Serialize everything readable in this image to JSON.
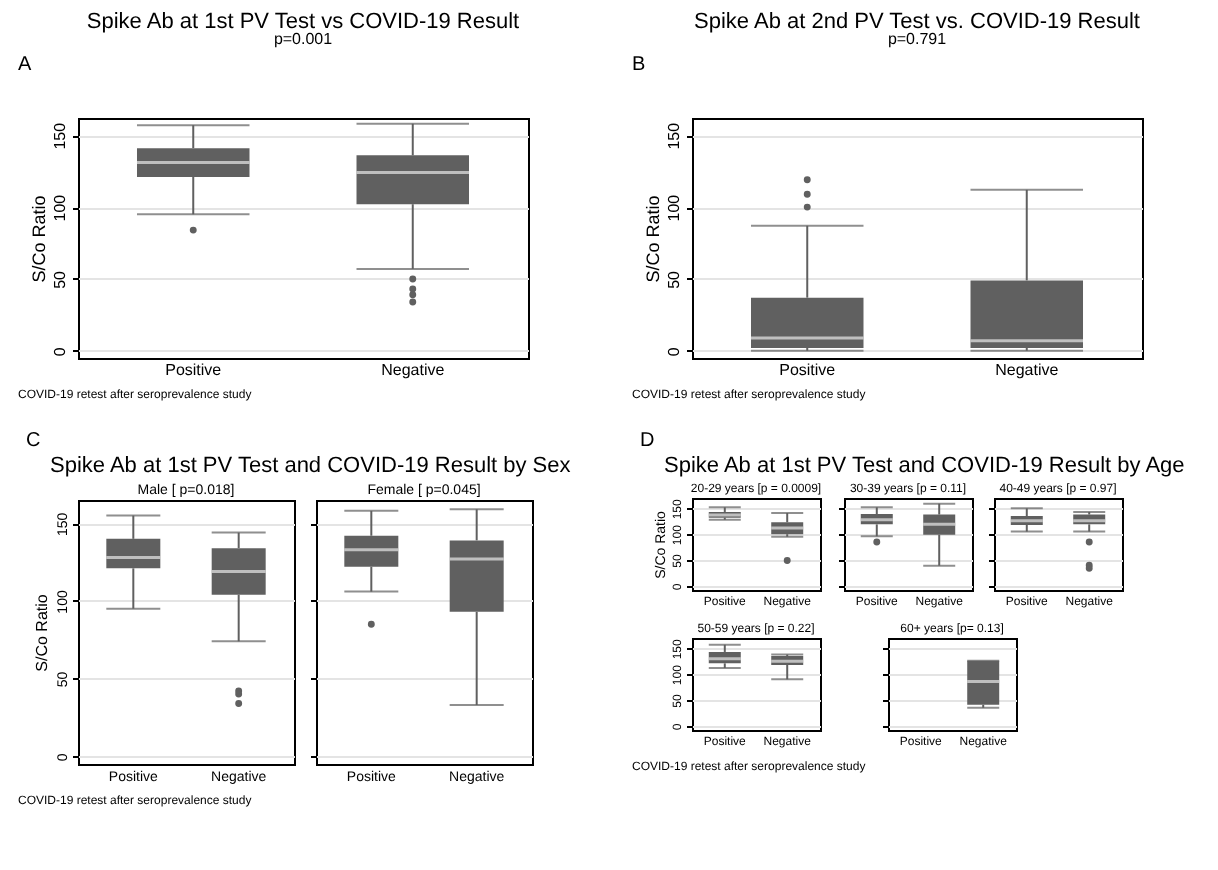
{
  "chart_data": [
    {
      "type": "box",
      "title": "Spike Ab at 1st PV Test vs COVID-19 Result",
      "subtitle": "p=0.001",
      "ylabel": "S/Co Ratio",
      "categories": [
        "Positive",
        "Negative"
      ],
      "ylim": [
        -5,
        162
      ],
      "yticks": [
        0,
        50,
        100,
        150
      ],
      "grid": "y",
      "color": "#606060",
      "annotations": [
        "A",
        "COVID-19 retest after seroprevalence study"
      ],
      "boxes": [
        {
          "low": 95,
          "q1": 121,
          "median": 131,
          "q3": 141,
          "high": 157,
          "outliers": [
            84
          ]
        },
        {
          "low": 57,
          "q1": 102,
          "median": 124,
          "q3": 136,
          "high": 158,
          "outliers": [
            50,
            43,
            39,
            34
          ]
        }
      ]
    },
    {
      "type": "box",
      "title": "Spike Ab at 2nd PV Test vs. COVID-19 Result",
      "subtitle": "p=0.791",
      "ylabel": "S/Co Ratio",
      "categories": [
        "Positive",
        "Negative"
      ],
      "ylim": [
        -5,
        162
      ],
      "yticks": [
        0,
        50,
        100,
        150
      ],
      "grid": "y",
      "color": "#606060",
      "annotations": [
        "B",
        "COVID-19 retest after seroprevalence study"
      ],
      "boxes": [
        {
          "low": 0,
          "q1": 2,
          "median": 9,
          "q3": 37,
          "high": 87,
          "outliers": [
            100,
            109,
            119
          ]
        },
        {
          "low": 0,
          "q1": 2,
          "median": 7,
          "q3": 49,
          "high": 112
        }
      ]
    },
    {
      "type": "other",
      "title": "Spike Ab at 1st PV Test and COVID-19 Result by Sex",
      "annotations": [
        "C"
      ]
    },
    {
      "type": "box",
      "title": "Male [ p=0.018]",
      "ylabel": "S/Co Ratio",
      "categories": [
        "Positive",
        "Negative"
      ],
      "ylim": [
        -5,
        165
      ],
      "yticks": [
        0,
        50,
        100,
        150
      ],
      "grid": "y",
      "color": "#606060",
      "annotations": [
        "COVID-19 retest after seroprevalence study"
      ],
      "boxes": [
        {
          "low": 95,
          "q1": 121,
          "median": 128,
          "q3": 140,
          "high": 155
        },
        {
          "low": 74,
          "q1": 104,
          "median": 119,
          "q3": 134,
          "high": 144,
          "outliers": [
            42,
            40,
            34
          ]
        }
      ]
    },
    {
      "type": "box",
      "title": "Female [ p=0.045]",
      "categories": [
        "Positive",
        "Negative"
      ],
      "ylim": [
        -5,
        165
      ],
      "yticks": [
        0,
        50,
        100,
        150
      ],
      "tick_labels": "x",
      "grid": "y",
      "color": "#606060",
      "boxes": [
        {
          "low": 106,
          "q1": 122,
          "median": 133,
          "q3": 142,
          "high": 158,
          "outliers": [
            85
          ]
        },
        {
          "low": 33,
          "q1": 93,
          "median": 127,
          "q3": 139,
          "high": 159
        }
      ]
    },
    {
      "type": "other",
      "title": "Spike Ab at 1st PV Test and COVID-19 Result by Age",
      "annotations": [
        "D"
      ]
    },
    {
      "type": "box",
      "title": "20-29 years [p = 0.0009]",
      "ylabel": "S/Co Ratio",
      "categories": [
        "Positive",
        "Negative"
      ],
      "ylim": [
        -8,
        170
      ],
      "yticks": [
        0,
        50,
        100,
        150
      ],
      "grid": "y",
      "color": "#606060",
      "boxes": [
        {
          "low": 128,
          "q1": 132,
          "median": 137,
          "q3": 143,
          "high": 152
        },
        {
          "low": 95,
          "q1": 100,
          "median": 112,
          "q3": 123,
          "high": 141,
          "outliers": [
            49
          ]
        }
      ]
    },
    {
      "type": "box",
      "title": "30-39 years [p = 0.11]",
      "categories": [
        "Positive",
        "Negative"
      ],
      "ylim": [
        -8,
        170
      ],
      "yticks": [
        0,
        50,
        100,
        150
      ],
      "tick_labels": "x",
      "grid": "y",
      "color": "#606060",
      "boxes": [
        {
          "low": 96,
          "q1": 119,
          "median": 128,
          "q3": 139,
          "high": 152,
          "outliers": [
            85
          ]
        },
        {
          "low": 39,
          "q1": 99,
          "median": 119,
          "q3": 138,
          "high": 159
        }
      ]
    },
    {
      "type": "box",
      "title": "40-49 years [p = 0.97]",
      "categories": [
        "Positive",
        "Negative"
      ],
      "ylim": [
        -8,
        170
      ],
      "yticks": [
        0,
        50,
        100,
        150
      ],
      "tick_labels": "x",
      "grid": "y",
      "color": "#606060",
      "boxes": [
        {
          "low": 105,
          "q1": 118,
          "median": 126,
          "q3": 135,
          "high": 150
        },
        {
          "low": 105,
          "q1": 119,
          "median": 126,
          "q3": 138,
          "high": 143,
          "outliers": [
            85,
            40,
            34
          ]
        }
      ]
    },
    {
      "type": "box",
      "title": "50-59 years [p = 0.22]",
      "categories": [
        "Positive",
        "Negative"
      ],
      "ylim": [
        -8,
        170
      ],
      "yticks": [
        0,
        50,
        100,
        150
      ],
      "grid": "y",
      "color": "#606060",
      "annotations": [
        "COVID-19 retest after seroprevalence study"
      ],
      "boxes": [
        {
          "low": 112,
          "q1": 121,
          "median": 130,
          "q3": 143,
          "high": 157
        },
        {
          "low": 90,
          "q1": 118,
          "median": 125,
          "q3": 135,
          "high": 138
        }
      ]
    },
    {
      "type": "box",
      "title": "60+ years [p= 0.13]",
      "categories": [
        "Positive",
        "Negative"
      ],
      "ylim": [
        -8,
        170
      ],
      "yticks": [
        0,
        50,
        100,
        150
      ],
      "tick_labels": "x",
      "grid": "y",
      "color": "#606060",
      "boxes": [
        null,
        {
          "low": 35,
          "q1": 41,
          "median": 86,
          "q3": 126,
          "high": 126
        }
      ]
    }
  ]
}
